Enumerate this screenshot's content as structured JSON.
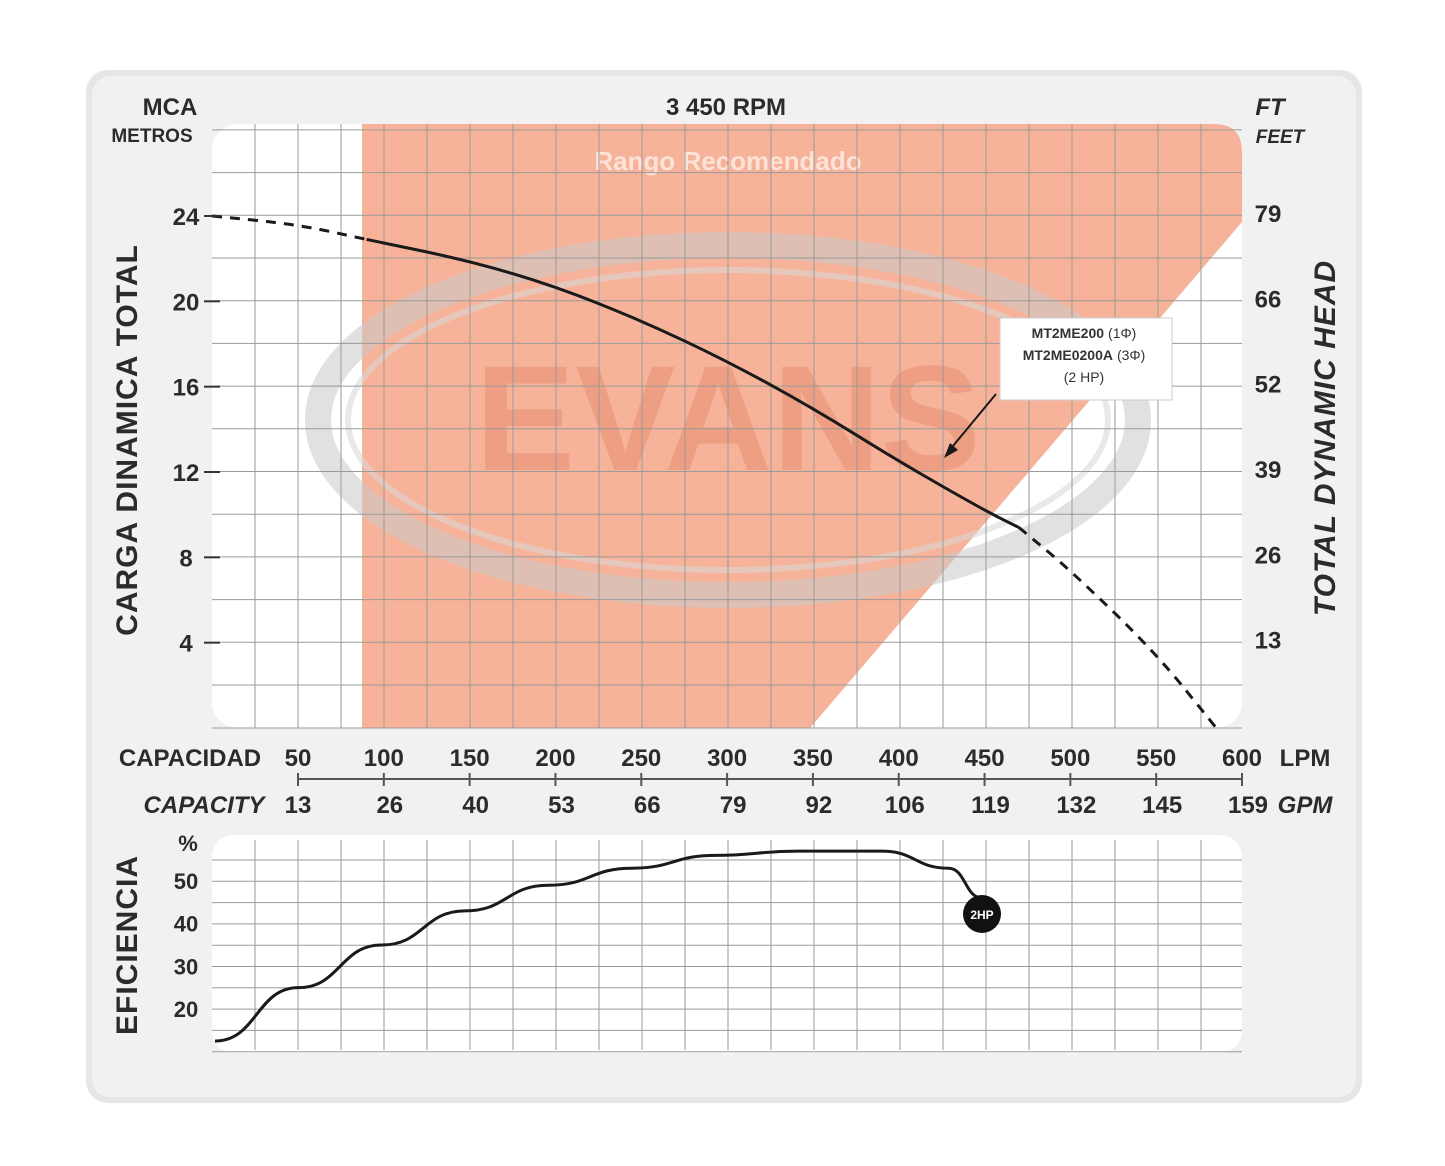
{
  "header": {
    "left_unit": "MCA",
    "left_unit_sub": "METROS",
    "rpm": "3 450 RPM",
    "right_unit": "FT",
    "right_unit_sub": "FEET",
    "range_label": "Rango Recomendado",
    "watermark": "EVANS"
  },
  "axes": {
    "y_left_title": "CARGA DINAMICA TOTAL",
    "y_right_title": "TOTAL DYNAMIC HEAD",
    "capacity_label_es": "CAPACIDAD",
    "capacity_label_en": "CAPACITY",
    "lpm_unit": "LPM",
    "gpm_unit": "GPM",
    "efficiency_title": "EFICIENCIA",
    "efficiency_unit": "%"
  },
  "annotation": {
    "line1": "MT2ME200",
    "line1_sub": "(1Φ)",
    "line2": "MT2ME0200A",
    "line2_sub": "(3Φ)",
    "line3": "(2 HP)",
    "badge": "2HP"
  },
  "colors": {
    "recommended_range": "#f7b39a",
    "curve": "#1a1a1a",
    "grid": "#9a9a9a",
    "frame": "#e4e4e4"
  },
  "chart_data": [
    {
      "type": "line",
      "title": "3 450 RPM",
      "xlabel": "CAPACIDAD (LPM) / CAPACITY (GPM)",
      "ylabel": "CARGA DINAMICA TOTAL (MCA METROS) / TOTAL DYNAMIC HEAD (FT FEET)",
      "xlim": [
        0,
        600
      ],
      "ylim": [
        0,
        28
      ],
      "x_ticks_lpm": [
        "50",
        "100",
        "150",
        "200",
        "250",
        "300",
        "350",
        "400",
        "450",
        "500",
        "550",
        "600"
      ],
      "x_ticks_gpm": [
        "13",
        "26",
        "40",
        "53",
        "66",
        "79",
        "92",
        "106",
        "119",
        "132",
        "145",
        "159"
      ],
      "y_ticks_left": [
        "4",
        "8",
        "12",
        "16",
        "20",
        "24"
      ],
      "y_ticks_right": [
        "13",
        "26",
        "39",
        "52",
        "66",
        "79"
      ],
      "recommended_range_lpm": [
        90,
        600
      ],
      "grid": true,
      "series": [
        {
          "name": "MT2ME200 (1Φ) MT2ME0200A (3Φ) (2 HP)",
          "x": [
            0,
            50,
            90,
            150,
            200,
            250,
            300,
            350,
            400,
            450,
            470,
            500,
            550,
            585
          ],
          "y": [
            24,
            23.6,
            22.9,
            21.9,
            20.7,
            19.1,
            17.2,
            15.0,
            12.5,
            10.2,
            9.4,
            7.4,
            3.5,
            0
          ],
          "solid_range": [
            90,
            470
          ]
        }
      ]
    },
    {
      "type": "line",
      "ylabel": "EFICIENCIA (%)",
      "xlim": [
        0,
        600
      ],
      "y_ticks": [
        "20",
        "30",
        "40",
        "50"
      ],
      "ylim": [
        12,
        60
      ],
      "grid": true,
      "series": [
        {
          "name": "2HP",
          "x": [
            0,
            50,
            100,
            150,
            200,
            250,
            300,
            350,
            400,
            440,
            460
          ],
          "y": [
            12.5,
            25,
            35,
            43,
            49,
            53,
            56,
            57,
            57,
            53,
            46
          ]
        }
      ]
    }
  ]
}
